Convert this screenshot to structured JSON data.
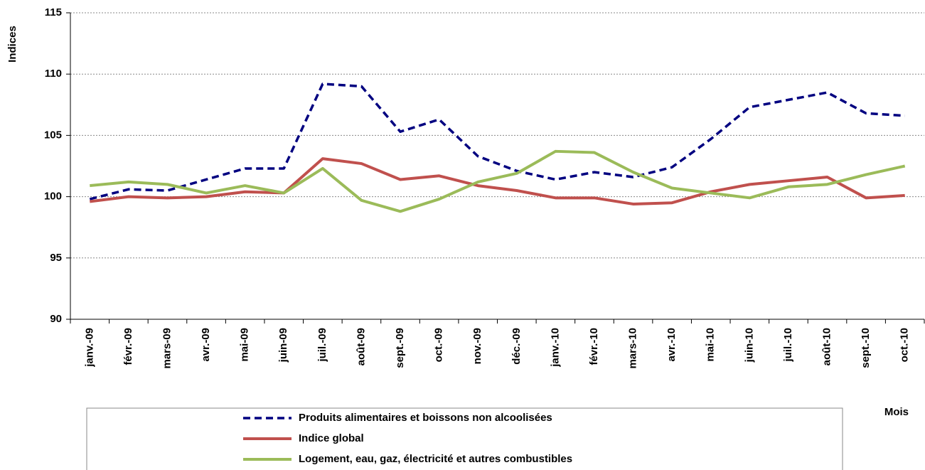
{
  "chart_data": {
    "type": "line",
    "y_label": "Indices",
    "x_label": "Mois",
    "categories": [
      "janv.-09",
      "févr.-09",
      "mars-09",
      "avr.-09",
      "mai-09",
      "juin-09",
      "juil.-09",
      "août-09",
      "sept.-09",
      "oct.-09",
      "nov.-09",
      "déc.-09",
      "janv.-10",
      "févr.-10",
      "mars-10",
      "avr.-10",
      "mai-10",
      "juin-10",
      "juil.-10",
      "août-10",
      "sept.-10",
      "oct.-10"
    ],
    "series": [
      {
        "name": "Produits alimentaires et boissons non alcoolisées",
        "color": "#000080",
        "dashed": true,
        "values": [
          99.8,
          100.6,
          100.5,
          101.4,
          102.3,
          102.3,
          109.2,
          109.0,
          105.3,
          106.3,
          103.3,
          102.1,
          101.4,
          102.0,
          101.6,
          102.4,
          104.7,
          107.3,
          107.9,
          108.5,
          106.8,
          106.6
        ]
      },
      {
        "name": "Indice global",
        "color": "#c0504d",
        "dashed": false,
        "values": [
          99.6,
          100.0,
          99.9,
          100.0,
          100.4,
          100.3,
          103.1,
          102.7,
          101.4,
          101.7,
          100.9,
          100.5,
          99.9,
          99.9,
          99.4,
          99.5,
          100.4,
          101.0,
          101.3,
          101.6,
          99.9,
          100.1
        ]
      },
      {
        "name": "Logement, eau, gaz, électricité et autres combustibles",
        "color": "#9bbb59",
        "dashed": false,
        "values": [
          100.9,
          101.2,
          101.0,
          100.3,
          100.9,
          100.3,
          102.3,
          99.7,
          98.8,
          99.8,
          101.2,
          101.9,
          103.7,
          103.6,
          102.0,
          100.7,
          100.3,
          99.9,
          100.8,
          101.0,
          101.8,
          102.5
        ]
      }
    ],
    "ylim": [
      90,
      115
    ],
    "yticks": [
      90,
      95,
      100,
      105,
      110,
      115
    ],
    "grid": true
  }
}
